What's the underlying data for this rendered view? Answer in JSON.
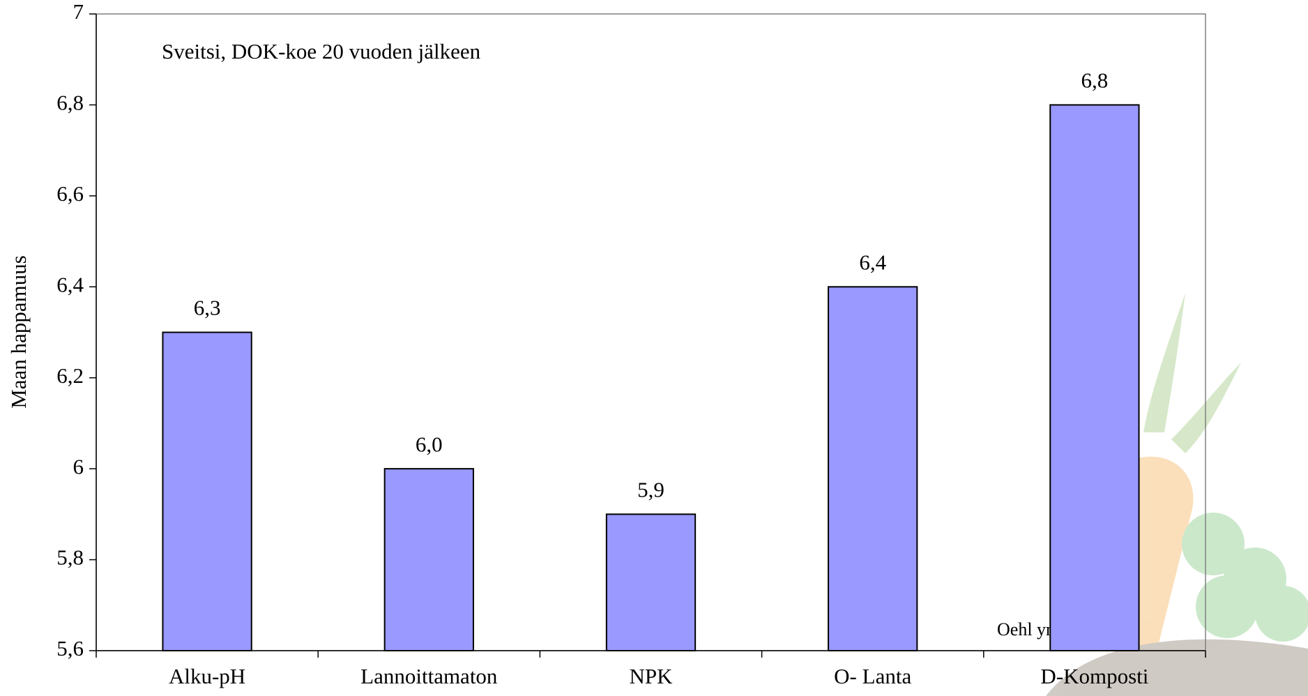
{
  "chart_data": {
    "type": "bar",
    "y_label": "Maan happamuus",
    "annotations": [
      "Sveitsi, DOK-koe 20 vuoden jälkeen",
      "Oehl ym 2001"
    ],
    "categories": [
      "Alku-pH",
      "Lannoittamaton",
      "NPK",
      "O- Lanta",
      "D-Komposti"
    ],
    "values": [
      6.3,
      6.0,
      5.9,
      6.4,
      6.8
    ],
    "value_labels": [
      "6,3",
      "6,0",
      "5,9",
      "6,4",
      "6,8"
    ],
    "color": "#9999ff",
    "ylim": [
      5.6,
      7
    ],
    "yticks": [
      {
        "value": 5.6,
        "label": "5,6"
      },
      {
        "value": 5.8,
        "label": "5,8"
      },
      6,
      {
        "value": 6.2,
        "label": "6,2"
      },
      {
        "value": 6.4,
        "label": "6,4"
      },
      {
        "value": 6.6,
        "label": "6,6"
      },
      {
        "value": 6.8,
        "label": "6,8"
      },
      7
    ]
  }
}
